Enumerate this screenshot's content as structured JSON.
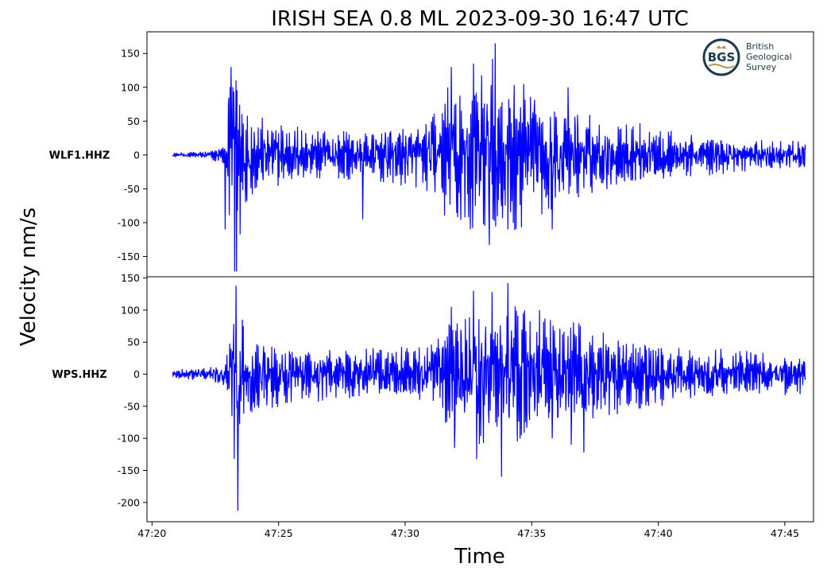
{
  "chart_data": {
    "type": "line",
    "title": "IRISH SEA 0.8 ML   2023-09-30 16:47 UTC",
    "xlabel": "Time",
    "ylabel": "Velocity nm/s",
    "grid": false,
    "line_color": "#0000ff",
    "x_ticks": [
      "47:20",
      "47:25",
      "47:30",
      "47:35",
      "47:40",
      "47:45"
    ],
    "x_tick_seconds": [
      1200,
      1500,
      1800,
      2100,
      2400,
      2700
    ],
    "xlim_seconds": [
      1188,
      2768
    ],
    "trace_start_seconds": 1249,
    "trace_end_seconds": 2749,
    "panels": [
      {
        "station": "WLF1.HHZ",
        "ylim": [
          -180,
          182
        ],
        "yticks": [
          150,
          100,
          50,
          0,
          -50,
          -100,
          -150
        ],
        "ytick_labels": [
          "150",
          "100",
          "50",
          "0",
          "-50",
          "-100",
          "-150"
        ],
        "envelope": [
          [
            0,
            4
          ],
          [
            0.06,
            8
          ],
          [
            0.085,
            20
          ],
          [
            0.09,
            175
          ],
          [
            0.105,
            170
          ],
          [
            0.12,
            70
          ],
          [
            0.2,
            50
          ],
          [
            0.3,
            40
          ],
          [
            0.4,
            60
          ],
          [
            0.44,
            135
          ],
          [
            0.5,
            165
          ],
          [
            0.58,
            100
          ],
          [
            0.68,
            65
          ],
          [
            0.8,
            40
          ],
          [
            0.9,
            28
          ],
          [
            1,
            25
          ]
        ],
        "peaks": [
          [
            0.092,
            130
          ],
          [
            0.098,
            -172
          ],
          [
            0.101,
            -172
          ],
          [
            0.095,
            100
          ],
          [
            0.083,
            -110
          ],
          [
            0.1,
            110
          ],
          [
            0.44,
            130
          ],
          [
            0.47,
            -110
          ],
          [
            0.5,
            -133
          ],
          [
            0.51,
            165
          ],
          [
            0.53,
            -110
          ],
          [
            0.555,
            105
          ],
          [
            0.625,
            100
          ],
          [
            0.6,
            -110
          ],
          [
            0.3,
            -95
          ],
          [
            0.45,
            -92
          ]
        ]
      },
      {
        "station": "WPS.HHZ",
        "ylim": [
          -230,
          152
        ],
        "yticks": [
          150,
          100,
          50,
          0,
          -50,
          -100,
          -150,
          -200
        ],
        "ytick_labels": [
          "150",
          "100",
          "50",
          "0",
          "-50",
          "-100",
          "-150",
          "-200"
        ],
        "envelope": [
          [
            0,
            8
          ],
          [
            0.06,
            14
          ],
          [
            0.085,
            30
          ],
          [
            0.095,
            140
          ],
          [
            0.115,
            80
          ],
          [
            0.2,
            50
          ],
          [
            0.3,
            45
          ],
          [
            0.4,
            55
          ],
          [
            0.44,
            110
          ],
          [
            0.5,
            140
          ],
          [
            0.58,
            110
          ],
          [
            0.68,
            80
          ],
          [
            0.8,
            50
          ],
          [
            0.9,
            42
          ],
          [
            1,
            35
          ]
        ],
        "peaks": [
          [
            0.1,
            138
          ],
          [
            0.103,
            -213
          ],
          [
            0.097,
            -132
          ],
          [
            0.11,
            85
          ],
          [
            0.44,
            105
          ],
          [
            0.445,
            -115
          ],
          [
            0.475,
            130
          ],
          [
            0.48,
            -132
          ],
          [
            0.505,
            128
          ],
          [
            0.52,
            -160
          ],
          [
            0.53,
            142
          ],
          [
            0.545,
            -105
          ],
          [
            0.58,
            100
          ],
          [
            0.65,
            -122
          ],
          [
            0.63,
            -110
          ],
          [
            0.6,
            -100
          ]
        ]
      }
    ]
  },
  "logo": {
    "initials": "BGS",
    "lines": [
      "British",
      "Geological",
      "Survey"
    ],
    "colors": {
      "navy": "#1c3a4a",
      "gold": "#b8955a"
    }
  }
}
